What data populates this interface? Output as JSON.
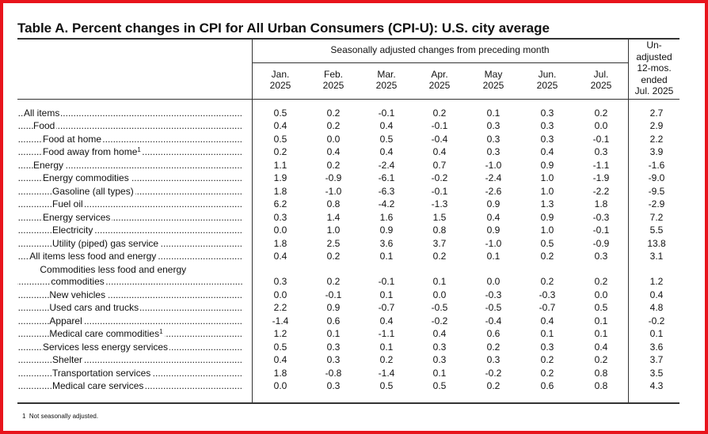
{
  "title": "Table A. Percent changes in CPI for All Urban Consumers (CPI-U): U.S. city average",
  "table": {
    "group_header": "Seasonally adjusted changes from preceding month",
    "columns": [
      {
        "month": "Jan.",
        "year": "2025"
      },
      {
        "month": "Feb.",
        "year": "2025"
      },
      {
        "month": "Mar.",
        "year": "2025"
      },
      {
        "month": "Apr.",
        "year": "2025"
      },
      {
        "month": "May",
        "year": "2025"
      },
      {
        "month": "Jun.",
        "year": "2025"
      },
      {
        "month": "Jul.",
        "year": "2025"
      }
    ],
    "last_column": [
      "Un-",
      "adjusted",
      "12-mos.",
      "ended",
      "Jul. 2025"
    ],
    "rows": [
      {
        "label": "All items",
        "values": [
          "0.5",
          "0.2",
          "-0.1",
          "0.2",
          "0.1",
          "0.3",
          "0.2",
          "2.7"
        ]
      },
      {
        "label": "Food",
        "values": [
          "0.4",
          "0.2",
          "0.4",
          "-0.1",
          "0.3",
          "0.3",
          "0.0",
          "2.9"
        ]
      },
      {
        "label": "Food at home",
        "values": [
          "0.5",
          "0.0",
          "0.5",
          "-0.4",
          "0.3",
          "0.3",
          "-0.1",
          "2.2"
        ]
      },
      {
        "label": "Food away from home",
        "note": "1",
        "values": [
          "0.2",
          "0.4",
          "0.4",
          "0.4",
          "0.3",
          "0.4",
          "0.3",
          "3.9"
        ]
      },
      {
        "label": "Energy",
        "values": [
          "1.1",
          "0.2",
          "-2.4",
          "0.7",
          "-1.0",
          "0.9",
          "-1.1",
          "-1.6"
        ]
      },
      {
        "label": "Energy commodities",
        "values": [
          "1.9",
          "-0.9",
          "-6.1",
          "-0.2",
          "-2.4",
          "1.0",
          "-1.9",
          "-9.0"
        ]
      },
      {
        "label": "Gasoline (all types)",
        "values": [
          "1.8",
          "-1.0",
          "-6.3",
          "-0.1",
          "-2.6",
          "1.0",
          "-2.2",
          "-9.5"
        ]
      },
      {
        "label": "Fuel oil",
        "values": [
          "6.2",
          "0.8",
          "-4.2",
          "-1.3",
          "0.9",
          "1.3",
          "1.8",
          "-2.9"
        ]
      },
      {
        "label": "Energy services",
        "values": [
          "0.3",
          "1.4",
          "1.6",
          "1.5",
          "0.4",
          "0.9",
          "-0.3",
          "7.2"
        ]
      },
      {
        "label": "Electricity",
        "values": [
          "0.0",
          "1.0",
          "0.9",
          "0.8",
          "0.9",
          "1.0",
          "-0.1",
          "5.5"
        ]
      },
      {
        "label": "Utility (piped) gas service",
        "values": [
          "1.8",
          "2.5",
          "3.6",
          "3.7",
          "-1.0",
          "0.5",
          "-0.9",
          "13.8"
        ]
      },
      {
        "label": "All items less food and energy",
        "values": [
          "0.4",
          "0.2",
          "0.1",
          "0.2",
          "0.1",
          "0.2",
          "0.3",
          "3.1"
        ]
      },
      {
        "label": "Commodities less food and energy commodities",
        "values": [
          "0.3",
          "0.2",
          "-0.1",
          "0.1",
          "0.0",
          "0.2",
          "0.2",
          "1.2"
        ]
      },
      {
        "label": "New vehicles",
        "values": [
          "0.0",
          "-0.1",
          "0.1",
          "0.0",
          "-0.3",
          "-0.3",
          "0.0",
          "0.4"
        ]
      },
      {
        "label": "Used cars and trucks",
        "values": [
          "2.2",
          "0.9",
          "-0.7",
          "-0.5",
          "-0.5",
          "-0.7",
          "0.5",
          "4.8"
        ]
      },
      {
        "label": "Apparel",
        "values": [
          "-1.4",
          "0.6",
          "0.4",
          "-0.2",
          "-0.4",
          "0.4",
          "0.1",
          "-0.2"
        ]
      },
      {
        "label": "Medical care commodities",
        "note": "1",
        "values": [
          "1.2",
          "0.1",
          "-1.1",
          "0.4",
          "0.6",
          "0.1",
          "0.1",
          "0.1"
        ]
      },
      {
        "label": "Services less energy services",
        "values": [
          "0.5",
          "0.3",
          "0.1",
          "0.3",
          "0.2",
          "0.3",
          "0.4",
          "3.6"
        ]
      },
      {
        "label": "Shelter",
        "values": [
          "0.4",
          "0.3",
          "0.2",
          "0.3",
          "0.3",
          "0.2",
          "0.2",
          "3.7"
        ]
      },
      {
        "label": "Transportation services",
        "values": [
          "1.8",
          "-0.8",
          "-1.4",
          "0.1",
          "-0.2",
          "0.2",
          "0.8",
          "3.5"
        ]
      },
      {
        "label": "Medical care services",
        "values": [
          "0.0",
          "0.3",
          "0.5",
          "0.5",
          "0.2",
          "0.6",
          "0.8",
          "4.3"
        ]
      }
    ]
  },
  "footnote": {
    "mark": "1",
    "text": "Not seasonally adjusted."
  }
}
